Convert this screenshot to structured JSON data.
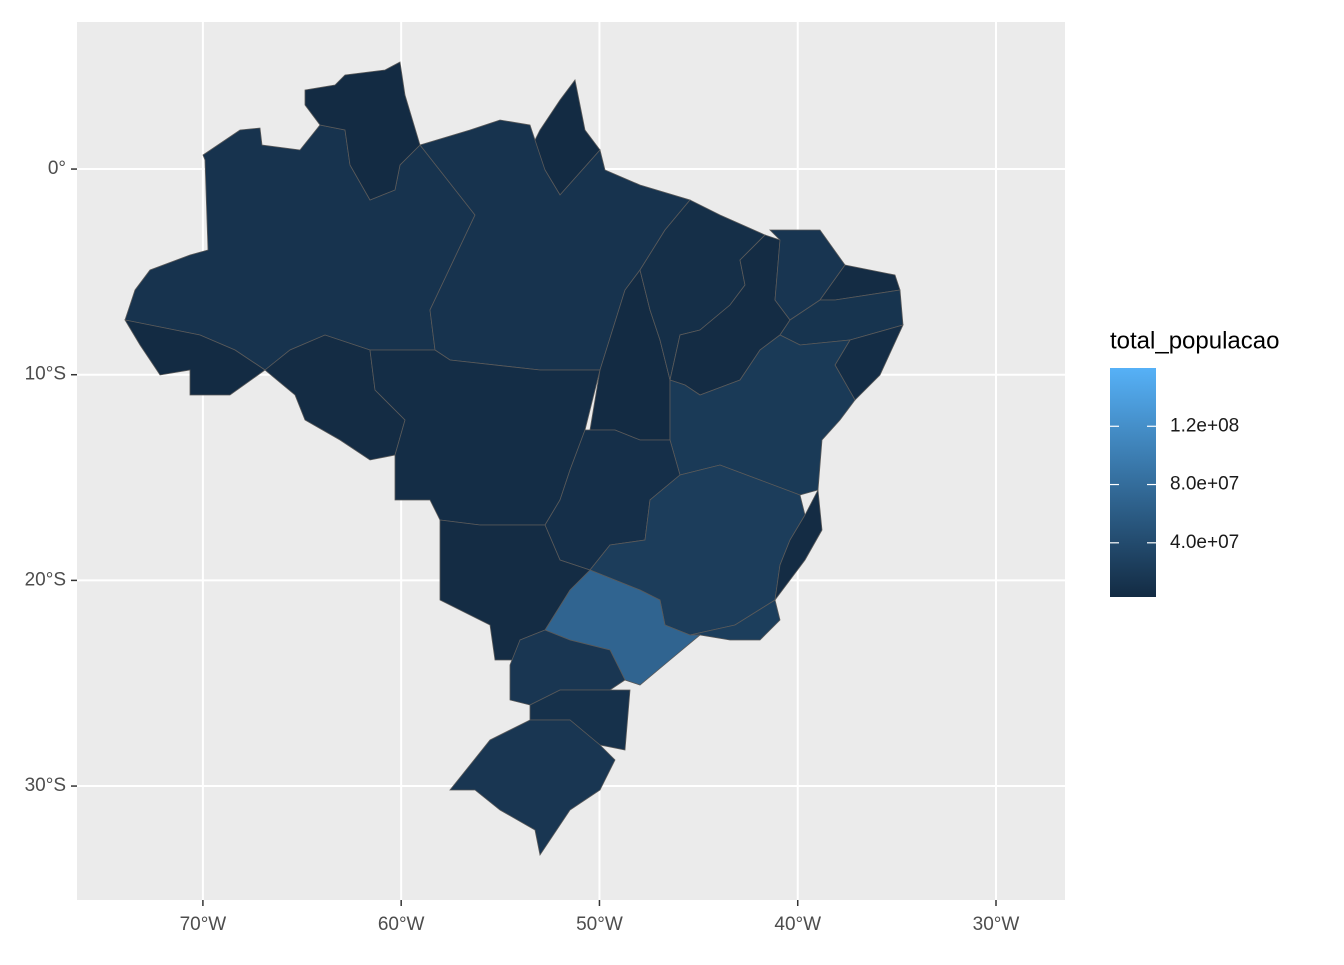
{
  "chart_data": {
    "type": "choropleth",
    "values": [
      12000000,
      3000000,
      3000000,
      12000000,
      3000000,
      4000000,
      5000000,
      3000000,
      7000000,
      4000000,
      15000000,
      4000000,
      13000000,
      5000000,
      20000000,
      8000000,
      24000000,
      4000000,
      25000000,
      70000000,
      4000000,
      16000000,
      10000000,
      16000000
    ],
    "xlim": [
      -76.35,
      -26.52
    ],
    "ylim": [
      7.15,
      -35.54
    ],
    "xticks": [
      {
        "value": -70,
        "label": "70°W"
      },
      {
        "value": -60,
        "label": "60°W"
      },
      {
        "value": -50,
        "label": "50°W"
      },
      {
        "value": -40,
        "label": "40°W"
      },
      {
        "value": -30,
        "label": "30°W"
      }
    ],
    "yticks": [
      {
        "value": 0,
        "label": "0°"
      },
      {
        "value": -10,
        "label": "10°S"
      },
      {
        "value": -20,
        "label": "20°S"
      },
      {
        "value": -30,
        "label": "30°S"
      }
    ],
    "grid": true,
    "legend": {
      "title": "total_populacao",
      "limits": [
        2800000,
        160000000
      ],
      "colors": [
        "#132B43",
        "#56B1F7"
      ],
      "ticks": [
        {
          "value": 120000000,
          "label": "1.2e+08"
        },
        {
          "value": 80000000,
          "label": "8.0e+07"
        },
        {
          "value": 40000000,
          "label": "4.0e+07"
        }
      ]
    }
  }
}
